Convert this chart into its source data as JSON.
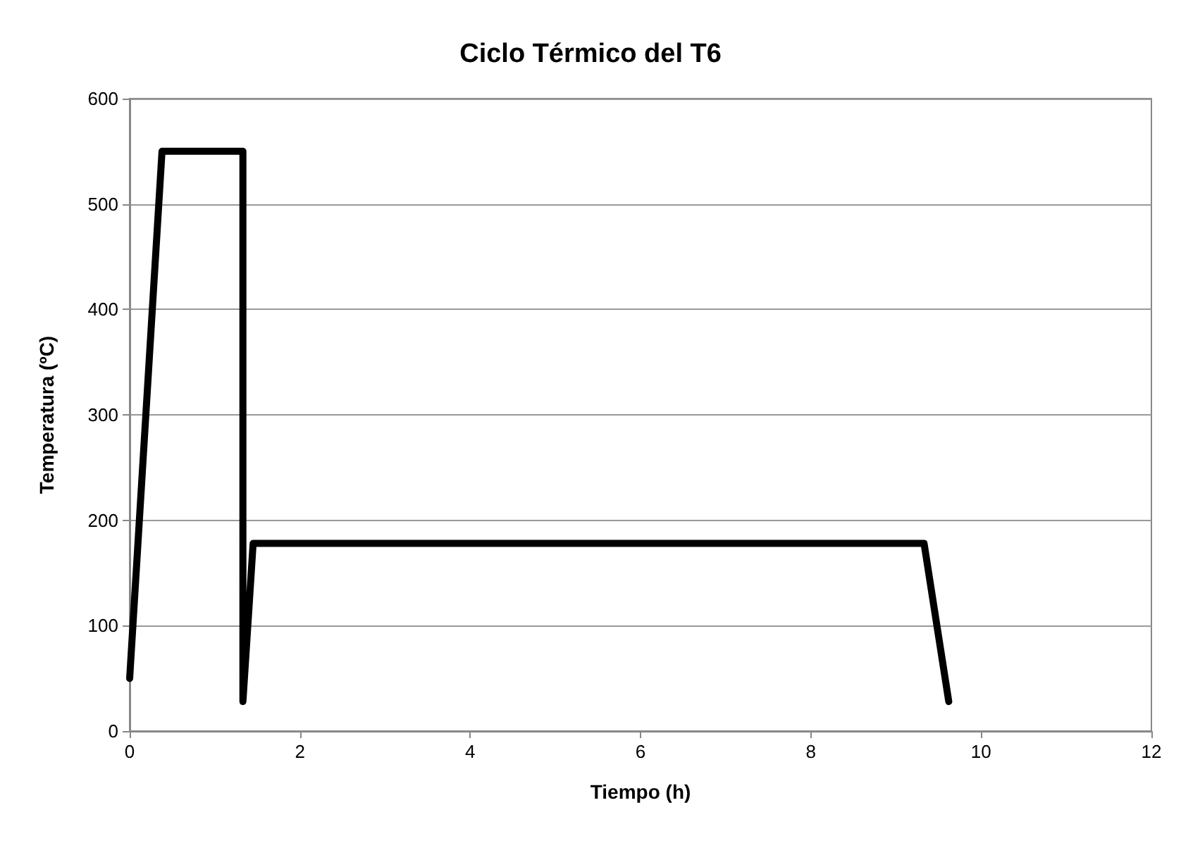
{
  "chart_data": {
    "type": "line",
    "title": "Ciclo Térmico del T6",
    "xlabel": "Tiempo (h)",
    "ylabel": "Temperatura (ºC)",
    "x": [
      0,
      0.38,
      1.33,
      1.33,
      1.45,
      9.33,
      9.62
    ],
    "series": [
      {
        "color": "#000000",
        "values": [
          50,
          550,
          550,
          28,
          178,
          178,
          28
        ]
      }
    ],
    "xlim": [
      0,
      12
    ],
    "xticks": [
      0,
      2,
      4,
      6,
      8,
      10,
      12
    ],
    "ylim": [
      0,
      600
    ],
    "yticks": [
      0,
      100,
      200,
      300,
      400,
      500,
      600
    ],
    "grid": "y",
    "marker": "none",
    "line_style": "solid"
  }
}
